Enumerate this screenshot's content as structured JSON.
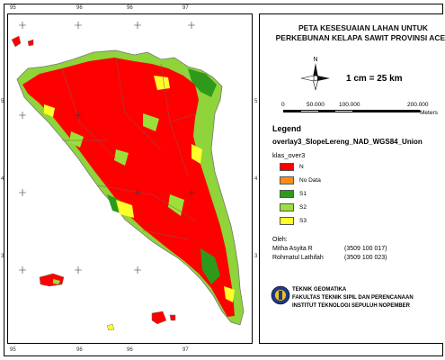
{
  "map": {
    "top_ticks": [
      "95",
      "96",
      "96",
      "97"
    ],
    "bottom_ticks": [
      "95",
      "96",
      "96",
      "97"
    ],
    "right_ticks": [
      "5",
      "4",
      "3"
    ],
    "left_ticks": [
      "5",
      "4",
      "3"
    ]
  },
  "panel": {
    "title_line1": "PETA KESESUAIAN LAHAN UNTUK",
    "title_line2": "PERKEBUNAN KELAPA SAWIT PROVINSI ACEH",
    "north_label": "N",
    "scale_text": "1 cm = 25 km",
    "scale_bar": [
      "0",
      "50.000",
      "100.000",
      "200.000"
    ],
    "scale_unit": "Meters",
    "legend_heading": "Legend",
    "layer_name": "overlay3_SlopeLereng_NAD_WGS84_Union",
    "field_name": "klas_over3",
    "legend_items": [
      {
        "label": "N",
        "color": "#ff0000"
      },
      {
        "label": "No Data",
        "color": "#ff8c1a"
      },
      {
        "label": "S1",
        "color": "#2e9a1c"
      },
      {
        "label": "S2",
        "color": "#9be03a"
      },
      {
        "label": "S3",
        "color": "#ffff2a"
      }
    ],
    "oleh_label": "Oleh:",
    "authors": [
      {
        "name": "Mitha Asyita R",
        "nim": "(3509 100 017)"
      },
      {
        "name": "Rohmatul Lathifah",
        "nim": "(3509 100 023)"
      }
    ],
    "institution_lines": [
      "TEKNIK GEOMATIKA",
      "FAKULTAS TEKNIK SIPIL DAN PERENCANAAN",
      "INSTITUT TEKNOLOGI SEPULUH NOPEMBER"
    ]
  }
}
